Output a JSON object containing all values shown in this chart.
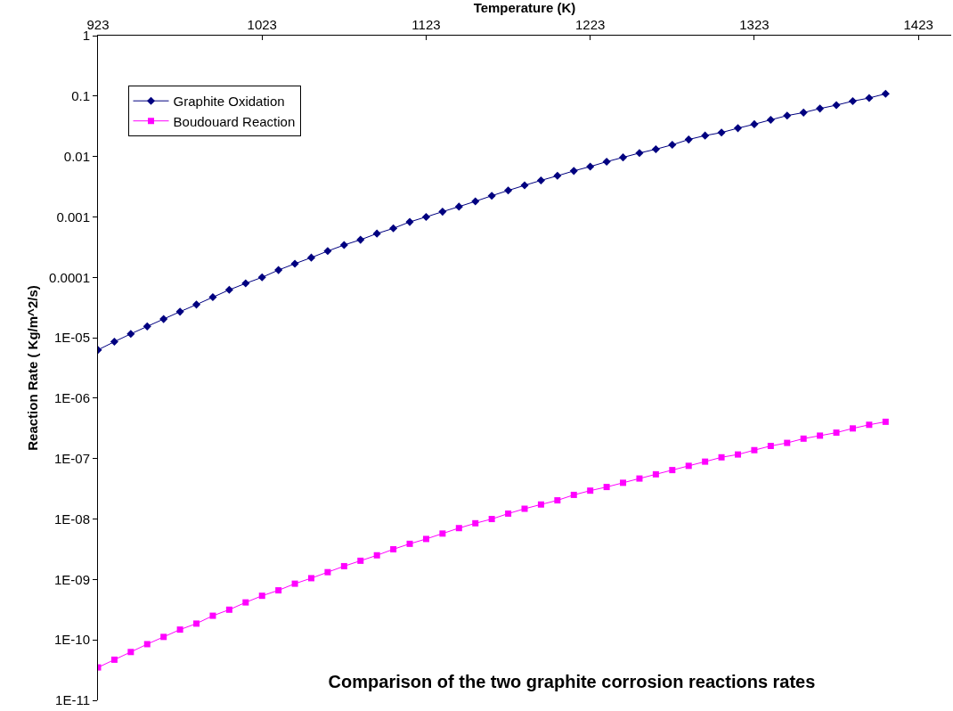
{
  "chart_data": {
    "type": "line",
    "title": "Comparison of the two graphite corrosion reactions rates",
    "xlabel": "Temperature (K)",
    "ylabel": "Reaction Rate ( Kg/m^2/s)",
    "x": [
      923,
      933,
      943,
      953,
      963,
      973,
      983,
      993,
      1003,
      1013,
      1023,
      1033,
      1043,
      1053,
      1063,
      1073,
      1083,
      1093,
      1103,
      1113,
      1123,
      1133,
      1143,
      1153,
      1163,
      1173,
      1183,
      1193,
      1203,
      1213,
      1223,
      1233,
      1243,
      1253,
      1263,
      1273,
      1283,
      1293,
      1303,
      1313,
      1323,
      1333,
      1343,
      1353,
      1363,
      1373,
      1383,
      1393,
      1403
    ],
    "series": [
      {
        "name": "Graphite Oxidation",
        "color": "#000080",
        "marker": "diamond",
        "values": [
          6.3e-06,
          8.6e-06,
          1.16e-05,
          1.54e-05,
          2.04e-05,
          2.7e-05,
          3.54e-05,
          4.69e-05,
          6.21e-05,
          7.94e-05,
          0.0001,
          0.000132,
          0.000168,
          0.000212,
          0.000272,
          0.000343,
          0.000419,
          0.00053,
          0.000646,
          0.000826,
          0.001,
          0.00122,
          0.00148,
          0.00181,
          0.00224,
          0.00274,
          0.00333,
          0.00402,
          0.00479,
          0.00577,
          0.00681,
          0.0082,
          0.00966,
          0.0114,
          0.0132,
          0.0156,
          0.0191,
          0.0222,
          0.0249,
          0.0294,
          0.0342,
          0.0404,
          0.0475,
          0.0533,
          0.0621,
          0.0708,
          0.0824,
          0.0929,
          0.109
        ]
      },
      {
        "name": "Boudouard Reaction",
        "color": "#ff00ff",
        "marker": "square",
        "values": [
          3.5e-11,
          4.7e-11,
          6.3e-11,
          8.5e-11,
          1.12e-10,
          1.48e-10,
          1.86e-10,
          2.51e-10,
          3.16e-10,
          4.17e-10,
          5.37e-10,
          6.61e-10,
          8.51e-10,
          1.05e-09,
          1.32e-09,
          1.66e-09,
          2.04e-09,
          2.51e-09,
          3.16e-09,
          3.89e-09,
          4.68e-09,
          5.75e-09,
          7.08e-09,
          8.51e-09,
          1e-08,
          1.23e-08,
          1.48e-08,
          1.74e-08,
          2.04e-08,
          2.51e-08,
          2.95e-08,
          3.39e-08,
          3.98e-08,
          4.68e-08,
          5.5e-08,
          6.46e-08,
          7.59e-08,
          8.91e-08,
          1.05e-07,
          1.17e-07,
          1.38e-07,
          1.62e-07,
          1.82e-07,
          2.14e-07,
          2.4e-07,
          2.69e-07,
          3.16e-07,
          3.63e-07,
          4.07e-07
        ]
      }
    ],
    "xlim": [
      923,
      1443
    ],
    "xticks": [
      923,
      1023,
      1123,
      1223,
      1323,
      1423
    ],
    "ylim": [
      1e-11,
      1
    ],
    "yticks": [
      1,
      0.1,
      0.01,
      0.001,
      0.0001,
      {
        "value": 1e-05,
        "label": "1E-05"
      },
      {
        "value": 1e-06,
        "label": "1E-06"
      },
      {
        "value": 1e-07,
        "label": "1E-07"
      },
      {
        "value": 1e-08,
        "label": "1E-08"
      },
      {
        "value": 1e-09,
        "label": "1E-09"
      },
      {
        "value": 1e-10,
        "label": "1E-10"
      },
      {
        "value": 1e-11,
        "label": "1E-11"
      }
    ],
    "log": true,
    "grid": false,
    "legend": "top left"
  }
}
